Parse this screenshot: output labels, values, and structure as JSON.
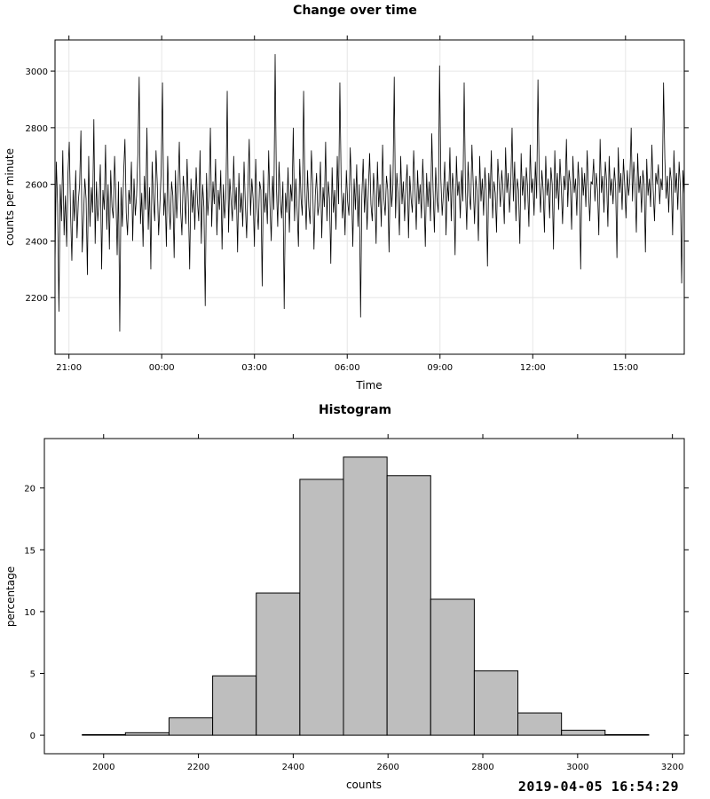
{
  "timestamp": "2019-04-05 16:54:29",
  "chart_data": [
    {
      "type": "line",
      "title": "Change over time",
      "xlabel": "Time",
      "ylabel": "counts per minute",
      "x_start": "20:33",
      "x_end": "16:54",
      "x_tick_labels": [
        "21:00",
        "00:00",
        "03:00",
        "06:00",
        "09:00",
        "12:00",
        "15:00"
      ],
      "ylim": [
        2000,
        3110
      ],
      "y_ticks": [
        2200,
        2400,
        2600,
        2800,
        3000
      ],
      "grid": true,
      "series": [
        {
          "values": [
            2310,
            2680,
            2530,
            2150,
            2600,
            2470,
            2720,
            2420,
            2560,
            2380,
            2640,
            2750,
            2500,
            2330,
            2580,
            2470,
            2650,
            2410,
            2540,
            2600,
            2790,
            2360,
            2480,
            2620,
            2550,
            2280,
            2700,
            2450,
            2590,
            2500,
            2830,
            2390,
            2610,
            2470,
            2540,
            2670,
            2300,
            2580,
            2510,
            2740,
            2440,
            2600,
            2370,
            2650,
            2520,
            2480,
            2700,
            2560,
            2350,
            2610,
            2080,
            2590,
            2450,
            2640,
            2760,
            2500,
            2420,
            2580,
            2530,
            2680,
            2400,
            2620,
            2490,
            2560,
            2710,
            2980,
            2460,
            2570,
            2380,
            2630,
            2510,
            2800,
            2440,
            2590,
            2300,
            2680,
            2550,
            2470,
            2720,
            2600,
            2420,
            2530,
            2650,
            2960,
            2490,
            2570,
            2380,
            2700,
            2520,
            2440,
            2610,
            2560,
            2340,
            2650,
            2480,
            2590,
            2750,
            2510,
            2420,
            2630,
            2570,
            2460,
            2690,
            2530,
            2300,
            2620,
            2500,
            2580,
            2440,
            2660,
            2540,
            2470,
            2720,
            2390,
            2600,
            2520,
            2170,
            2640,
            2490,
            2570,
            2800,
            2450,
            2610,
            2530,
            2690,
            2420,
            2580,
            2510,
            2650,
            2370,
            2600,
            2480,
            2560,
            2930,
            2430,
            2620,
            2540,
            2470,
            2700,
            2510,
            2590,
            2360,
            2640,
            2500,
            2570,
            2450,
            2680,
            2530,
            2410,
            2600,
            2760,
            2490,
            2620,
            2550,
            2380,
            2690,
            2520,
            2440,
            2610,
            2580,
            2240,
            2650,
            2500,
            2570,
            2460,
            2720,
            2530,
            2400,
            2630,
            2510,
            3060,
            2590,
            2450,
            2680,
            2540,
            2480,
            2610,
            2160,
            2570,
            2500,
            2660,
            2430,
            2600,
            2540,
            2800,
            2470,
            2620,
            2510,
            2380,
            2690,
            2550,
            2490,
            2930,
            2580,
            2440,
            2650,
            2520,
            2460,
            2720,
            2600,
            2370,
            2560,
            2640,
            2490,
            2530,
            2680,
            2410,
            2590,
            2520,
            2750,
            2470,
            2610,
            2550,
            2320,
            2660,
            2500,
            2580,
            2440,
            2700,
            2530,
            2960,
            2610,
            2480,
            2570,
            2420,
            2650,
            2540,
            2490,
            2730,
            2590,
            2380,
            2620,
            2510,
            2670,
            2450,
            2600,
            2130,
            2560,
            2690,
            2500,
            2620,
            2440,
            2580,
            2710,
            2530,
            2470,
            2640,
            2560,
            2390,
            2680,
            2520,
            2600,
            2450,
            2740,
            2550,
            2490,
            2630,
            2580,
            2360,
            2670,
            2520,
            2600,
            2980,
            2480,
            2640,
            2560,
            2420,
            2700,
            2530,
            2610,
            2470,
            2590,
            2670,
            2410,
            2630,
            2550,
            2500,
            2720,
            2590,
            2440,
            2650,
            2530,
            2600,
            2480,
            2690,
            2560,
            2380,
            2640,
            2520,
            2610,
            2470,
            2780,
            2580,
            2430,
            2660,
            2550,
            2500,
            3020,
            2620,
            2490,
            2570,
            2680,
            2420,
            2610,
            2540,
            2730,
            2470,
            2640,
            2580,
            2350,
            2700,
            2560,
            2610,
            2480,
            2650,
            2540,
            2960,
            2590,
            2440,
            2680,
            2560,
            2510,
            2740,
            2600,
            2460,
            2630,
            2570,
            2400,
            2700,
            2540,
            2620,
            2490,
            2660,
            2580,
            2310,
            2640,
            2550,
            2720,
            2480,
            2610,
            2570,
            2430,
            2690,
            2600,
            2520,
            2650,
            2580,
            2460,
            2730,
            2570,
            2640,
            2500,
            2600,
            2800,
            2540,
            2680,
            2470,
            2620,
            2580,
            2390,
            2710,
            2560,
            2630,
            2510,
            2660,
            2590,
            2450,
            2740,
            2570,
            2620,
            2490,
            2680,
            2550,
            2970,
            2610,
            2500,
            2650,
            2580,
            2430,
            2700,
            2560,
            2620,
            2480,
            2660,
            2600,
            2370,
            2720,
            2550,
            2640,
            2510,
            2690,
            2590,
            2460,
            2630,
            2580,
            2760,
            2520,
            2650,
            2600,
            2440,
            2700,
            2570,
            2620,
            2490,
            2680,
            2590,
            2300,
            2660,
            2560,
            2640,
            2520,
            2720,
            2580,
            2470,
            2610,
            2600,
            2690,
            2540,
            2640,
            2580,
            2420,
            2760,
            2570,
            2630,
            2500,
            2680,
            2610,
            2450,
            2700,
            2560,
            2620,
            2530,
            2660,
            2590,
            2340,
            2730,
            2570,
            2640,
            2510,
            2690,
            2600,
            2480,
            2650,
            2560,
            2620,
            2800,
            2540,
            2680,
            2590,
            2430,
            2710,
            2570,
            2630,
            2500,
            2650,
            2600,
            2360,
            2690,
            2560,
            2620,
            2520,
            2740,
            2580,
            2470,
            2640,
            2600,
            2670,
            2530,
            2620,
            2580,
            2960,
            2690,
            2550,
            2630,
            2500,
            2660,
            2610,
            2420,
            2720,
            2570,
            2640,
            2510,
            2680,
            2590,
            2250,
            2650,
            2560
          ]
        }
      ]
    },
    {
      "type": "bar",
      "title": "Histogram",
      "xlabel": "counts",
      "ylabel": "percentage",
      "xlim": [
        1875,
        3225
      ],
      "ylim": [
        -1.5,
        24
      ],
      "x_ticks": [
        2000,
        2200,
        2400,
        2600,
        2800,
        3000,
        3200
      ],
      "y_ticks": [
        0,
        5,
        10,
        15,
        20
      ],
      "bins": [
        {
          "from": 1955,
          "to": 2046,
          "value": 0.05
        },
        {
          "from": 2046,
          "to": 2138,
          "value": 0.2
        },
        {
          "from": 2138,
          "to": 2230,
          "value": 1.4
        },
        {
          "from": 2230,
          "to": 2322,
          "value": 4.8
        },
        {
          "from": 2322,
          "to": 2414,
          "value": 11.5
        },
        {
          "from": 2414,
          "to": 2506,
          "value": 20.7
        },
        {
          "from": 2506,
          "to": 2598,
          "value": 22.5
        },
        {
          "from": 2598,
          "to": 2690,
          "value": 21.0
        },
        {
          "from": 2690,
          "to": 2782,
          "value": 11.0
        },
        {
          "from": 2782,
          "to": 2874,
          "value": 5.2
        },
        {
          "from": 2874,
          "to": 2966,
          "value": 1.8
        },
        {
          "from": 2966,
          "to": 3058,
          "value": 0.4
        },
        {
          "from": 3058,
          "to": 3150,
          "value": 0.05
        }
      ]
    }
  ]
}
